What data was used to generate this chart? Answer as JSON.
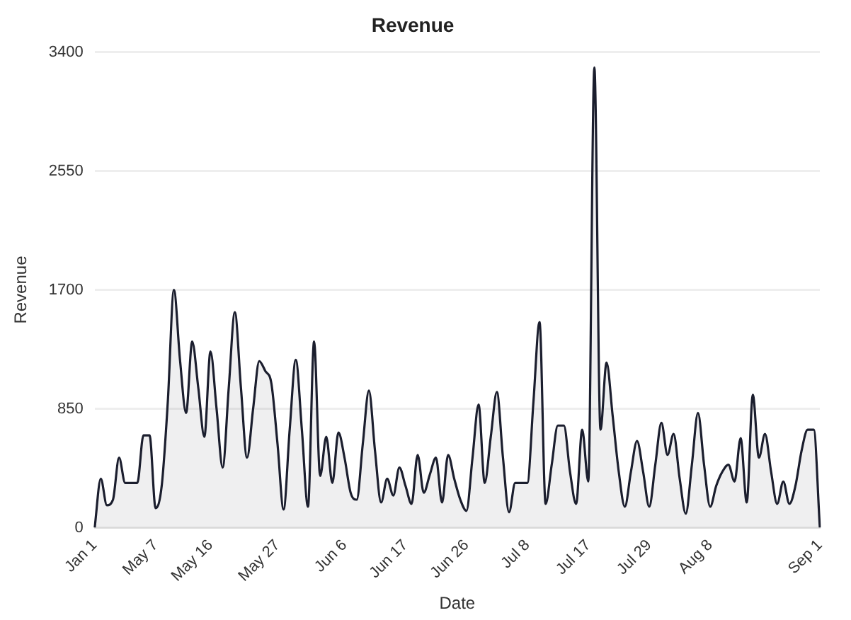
{
  "chart_data": {
    "type": "area",
    "title": "Revenue",
    "xlabel": "Date",
    "ylabel": "Revenue",
    "categories": [
      "Jan 1",
      null,
      null,
      null,
      null,
      null,
      null,
      null,
      null,
      null,
      "May 7",
      null,
      null,
      null,
      null,
      null,
      null,
      null,
      null,
      "May 16",
      null,
      null,
      null,
      null,
      null,
      null,
      null,
      null,
      null,
      null,
      "May 27",
      null,
      null,
      null,
      null,
      null,
      null,
      null,
      null,
      null,
      null,
      "Jun 6",
      null,
      null,
      null,
      null,
      null,
      null,
      null,
      null,
      null,
      "Jun 17",
      null,
      null,
      null,
      null,
      null,
      null,
      null,
      null,
      null,
      "Jun 26",
      null,
      null,
      null,
      null,
      null,
      null,
      null,
      null,
      null,
      "Jul 8",
      null,
      null,
      null,
      null,
      null,
      null,
      null,
      null,
      null,
      "Jul 17",
      null,
      null,
      null,
      null,
      null,
      null,
      null,
      null,
      null,
      "Jul 29",
      null,
      null,
      null,
      null,
      null,
      null,
      null,
      null,
      null,
      "Aug 8",
      null,
      null,
      null,
      null,
      null,
      null,
      null,
      null,
      null,
      null,
      null,
      null,
      null,
      null,
      null,
      null,
      null,
      "Sep 1"
    ],
    "series": [
      {
        "color": "#1b1e2e",
        "values": [
          0,
          350,
          160,
          200,
          500,
          320,
          320,
          320,
          660,
          660,
          140,
          300,
          900,
          1700,
          1200,
          820,
          1330,
          1000,
          650,
          1260,
          850,
          430,
          1000,
          1540,
          1000,
          500,
          850,
          1190,
          1120,
          1030,
          600,
          130,
          700,
          1200,
          700,
          150,
          1330,
          370,
          650,
          320,
          680,
          500,
          250,
          200,
          600,
          980,
          550,
          180,
          350,
          230,
          430,
          300,
          170,
          520,
          250,
          380,
          500,
          180,
          520,
          350,
          200,
          120,
          500,
          880,
          320,
          650,
          970,
          500,
          110,
          320,
          320,
          320,
          900,
          1470,
          170,
          450,
          730,
          730,
          400,
          170,
          700,
          330,
          3290,
          700,
          1180,
          800,
          400,
          150,
          400,
          620,
          400,
          150,
          450,
          750,
          520,
          670,
          350,
          100,
          450,
          820,
          450,
          150,
          300,
          400,
          450,
          330,
          640,
          180,
          950,
          500,
          670,
          400,
          170,
          330,
          170,
          300,
          550,
          700,
          700,
          0
        ]
      }
    ],
    "ylim": [
      0,
      3400
    ],
    "yticks": [
      0,
      850,
      1700,
      2550,
      3400
    ],
    "grid": "y",
    "legend": false,
    "marker": "none"
  }
}
